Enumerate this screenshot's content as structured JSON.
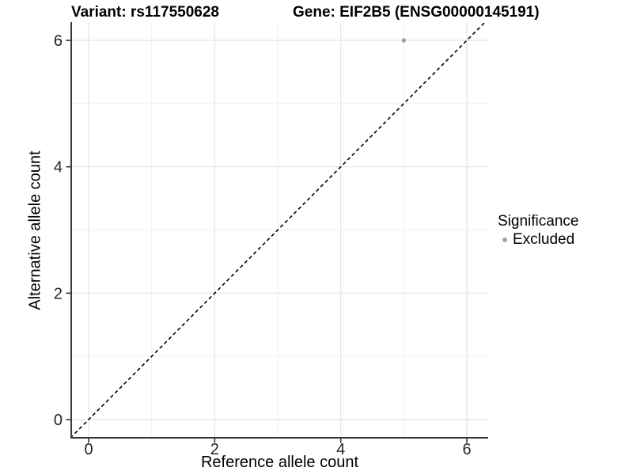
{
  "titles": {
    "variant": "Variant: rs117550628",
    "gene": "Gene: EIF2B5 (ENSG00000145191)"
  },
  "axes": {
    "x_label": "Reference allele count",
    "y_label": "Alternative allele count"
  },
  "legend": {
    "title": "Significance",
    "items": [
      {
        "label": "Excluded",
        "color": "#a1a1a1"
      }
    ]
  },
  "chart_data": {
    "type": "scatter",
    "xlabel": "Reference allele count",
    "ylabel": "Alternative allele count",
    "x_ticks": [
      0,
      2,
      4,
      6
    ],
    "y_ticks": [
      0,
      2,
      4,
      6
    ],
    "xlim": [
      -0.3,
      6.34
    ],
    "ylim": [
      -0.29,
      6.28
    ],
    "points": [
      {
        "x": 5,
        "y": 6,
        "series": "Excluded"
      }
    ],
    "reference_line": {
      "slope": 1,
      "intercept": 0,
      "style": "dashed",
      "color": "#000000"
    },
    "grid": {
      "show": true,
      "minor_x": [
        1,
        3,
        5
      ],
      "minor_y": [
        1,
        3,
        5
      ],
      "major_color": "#e4e4e4",
      "minor_color": "#f1f1f1"
    },
    "point_color": "#a1a1a1",
    "point_radius": 2.8,
    "axis_color": "#3a3a3a",
    "tick_color": "#333333",
    "tick_label_color": "#262626",
    "legend_position": "right"
  }
}
